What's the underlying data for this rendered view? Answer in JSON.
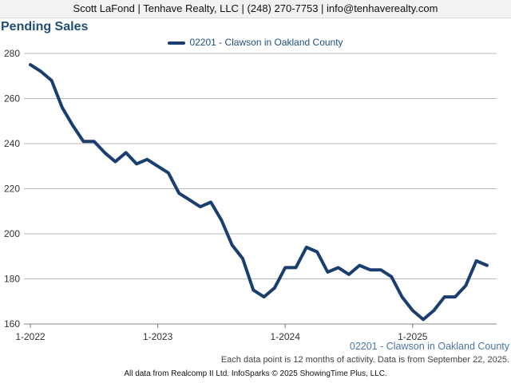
{
  "header": {
    "text": "Scott LaFond | Tenhave Realty, LLC | (248) 270-7753 | info@tenhaverealty.com"
  },
  "chart_data": {
    "type": "line",
    "title": "Pending Sales",
    "x_tick_labels": [
      "1-2022",
      "1-2023",
      "1-2024",
      "1-2025"
    ],
    "y_tick_labels": [
      "160",
      "180",
      "200",
      "220",
      "240",
      "260",
      "280"
    ],
    "ylim": [
      160,
      280
    ],
    "grid": true,
    "legend_position": "top-center",
    "series": [
      {
        "name": "02201 - Clawson in Oakland County",
        "color": "#1a3e6e",
        "x": [
          "2022-01",
          "2022-02",
          "2022-03",
          "2022-04",
          "2022-05",
          "2022-06",
          "2022-07",
          "2022-08",
          "2022-09",
          "2022-10",
          "2022-11",
          "2022-12",
          "2023-01",
          "2023-02",
          "2023-03",
          "2023-04",
          "2023-05",
          "2023-06",
          "2023-07",
          "2023-08",
          "2023-09",
          "2023-10",
          "2023-11",
          "2023-12",
          "2024-01",
          "2024-02",
          "2024-03",
          "2024-04",
          "2024-05",
          "2024-06",
          "2024-07",
          "2024-08",
          "2024-09",
          "2024-10",
          "2024-11",
          "2024-12",
          "2025-01",
          "2025-02",
          "2025-03",
          "2025-04",
          "2025-05",
          "2025-06",
          "2025-07",
          "2025-08"
        ],
        "values": [
          275,
          272,
          268,
          256,
          248,
          241,
          241,
          236,
          232,
          236,
          231,
          233,
          230,
          227,
          218,
          215,
          212,
          214,
          206,
          195,
          189,
          175,
          172,
          176,
          185,
          185,
          194,
          192,
          183,
          185,
          182,
          186,
          184,
          184,
          181,
          172,
          166,
          162,
          166,
          172,
          172,
          177,
          188,
          186
        ]
      }
    ]
  },
  "series_caption": "02201 - Clawson in Oakland County",
  "note": "Each data point is 12 months of activity. Data is from September 22, 2025.",
  "footer": "All data from Realcomp II Ltd. InfoSparks © 2025 ShowingTime Plus, LLC."
}
